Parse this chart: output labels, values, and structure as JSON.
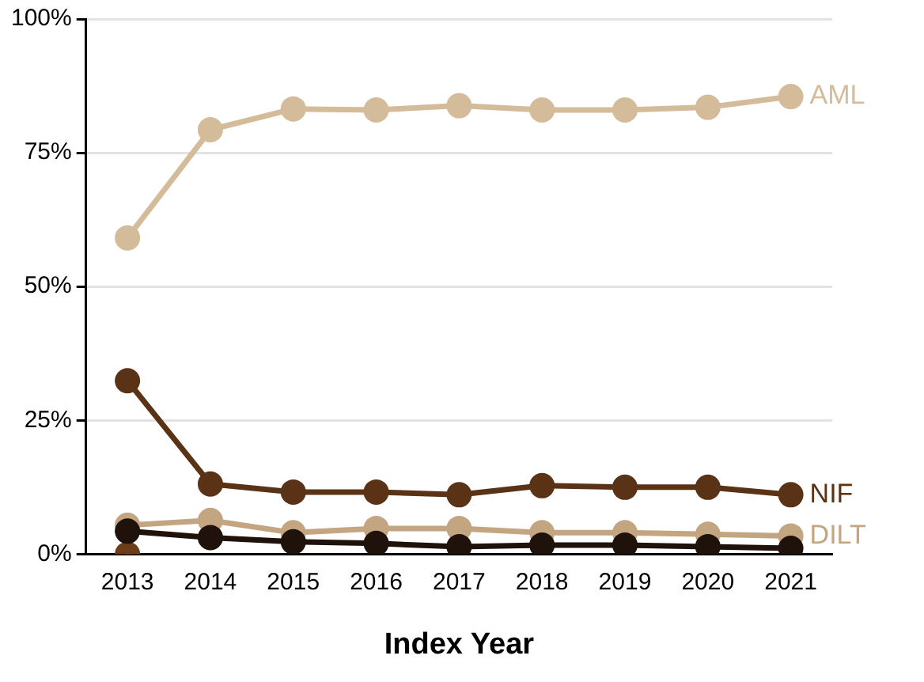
{
  "chart_data": {
    "type": "line",
    "xlabel": "Index Year",
    "categories": [
      "2013",
      "2014",
      "2015",
      "2016",
      "2017",
      "2018",
      "2019",
      "2020",
      "2021"
    ],
    "ylim": [
      0,
      100
    ],
    "yticks": [
      {
        "value": 0,
        "label": "0%"
      },
      {
        "value": 25,
        "label": "25%"
      },
      {
        "value": 50,
        "label": "50%"
      },
      {
        "value": 75,
        "label": "75%"
      },
      {
        "value": 100,
        "label": "100%"
      }
    ],
    "grid": "y",
    "legend": false,
    "marker": "circle",
    "line_style": "solid",
    "series": [
      {
        "color": "#6b3d18",
        "values": [
          0,
          null,
          null,
          null,
          null,
          null,
          null,
          null,
          null
        ]
      },
      {
        "name": "AML",
        "color": "#d4bc9a",
        "values": [
          59.1,
          79.3,
          83.2,
          83.0,
          83.8,
          83.0,
          83.0,
          83.5,
          85.5
        ]
      },
      {
        "name": "NIF",
        "color": "#5a3215",
        "values": [
          32.4,
          13.1,
          11.6,
          11.6,
          11.1,
          12.8,
          12.5,
          12.5,
          11.1
        ]
      },
      {
        "name": "DILT",
        "color": "#c4a582",
        "values": [
          5.4,
          6.3,
          4.0,
          4.8,
          4.8,
          4.0,
          4.0,
          3.7,
          3.4
        ]
      },
      {
        "color": "#1e120a",
        "values": [
          4.3,
          3.1,
          2.3,
          2.0,
          1.4,
          1.7,
          1.7,
          1.4,
          1.1
        ]
      }
    ]
  }
}
